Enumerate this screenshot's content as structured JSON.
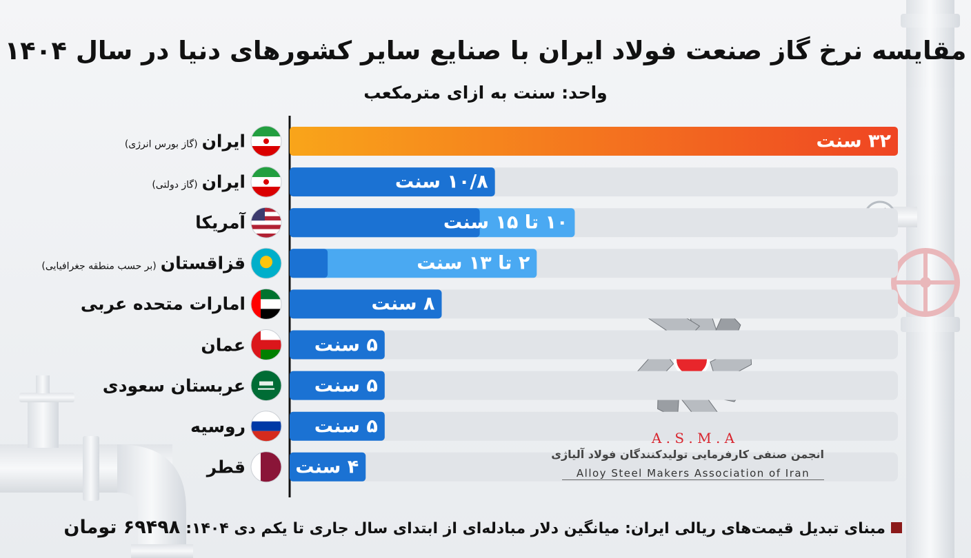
{
  "chart_data": {
    "type": "bar",
    "title": "مقایسه نرخ گاز صنعت فولاد ایران با صنایع سایر کشورهای دنیا در سال ۱۴۰۴",
    "subtitle": "واحد: سنت به ازای مترمکعب",
    "categories": [
      "ایران",
      "ایران",
      "آمریکا",
      "قزاقستان",
      "امارات متحده عربی",
      "عمان",
      "عربستان سعودی",
      "روسیه",
      "قطر"
    ],
    "category_notes": [
      "(گاز بورس انرژی)",
      "(گاز دولتی)",
      null,
      "(بر حسب منطقه جغرافیایی)",
      null,
      null,
      null,
      null,
      null
    ],
    "values": [
      32,
      10.8,
      10,
      2,
      8,
      5,
      5,
      5,
      4
    ],
    "range_max": [
      null,
      null,
      15,
      13,
      null,
      null,
      null,
      null,
      null
    ],
    "value_labels": [
      "۳۲ سنت",
      "۱۰/۸ سنت",
      "۱۰ تا ۱۵ سنت",
      "۲ تا ۱۳ سنت",
      "۸ سنت",
      "۵ سنت",
      "۵ سنت",
      "۵ سنت",
      "۴ سنت"
    ],
    "xlim": [
      0,
      32
    ],
    "colors": {
      "highlight_start": "#f9a51a",
      "highlight_end": "#ef4523",
      "bar": "#1b72d3",
      "range": "#4aa9f2",
      "track": "#e1e4e8"
    },
    "footnote": "مبنای تبدیل قیمت‌های ریالی ایران: میانگین دلار مبادله‌ای از ابتدای سال جاری تا یکم دی ۱۴۰۴:",
    "footnote_value": "۶۹۴۹۸ تومان",
    "logo": {
      "acronym": "A . S . M . A",
      "name_fa": "انجمن صنفی کارفرمایی تولیدکنندگان فولاد آلیاژی",
      "name_en": "Alloy Steel Makers Association of Iran"
    }
  }
}
